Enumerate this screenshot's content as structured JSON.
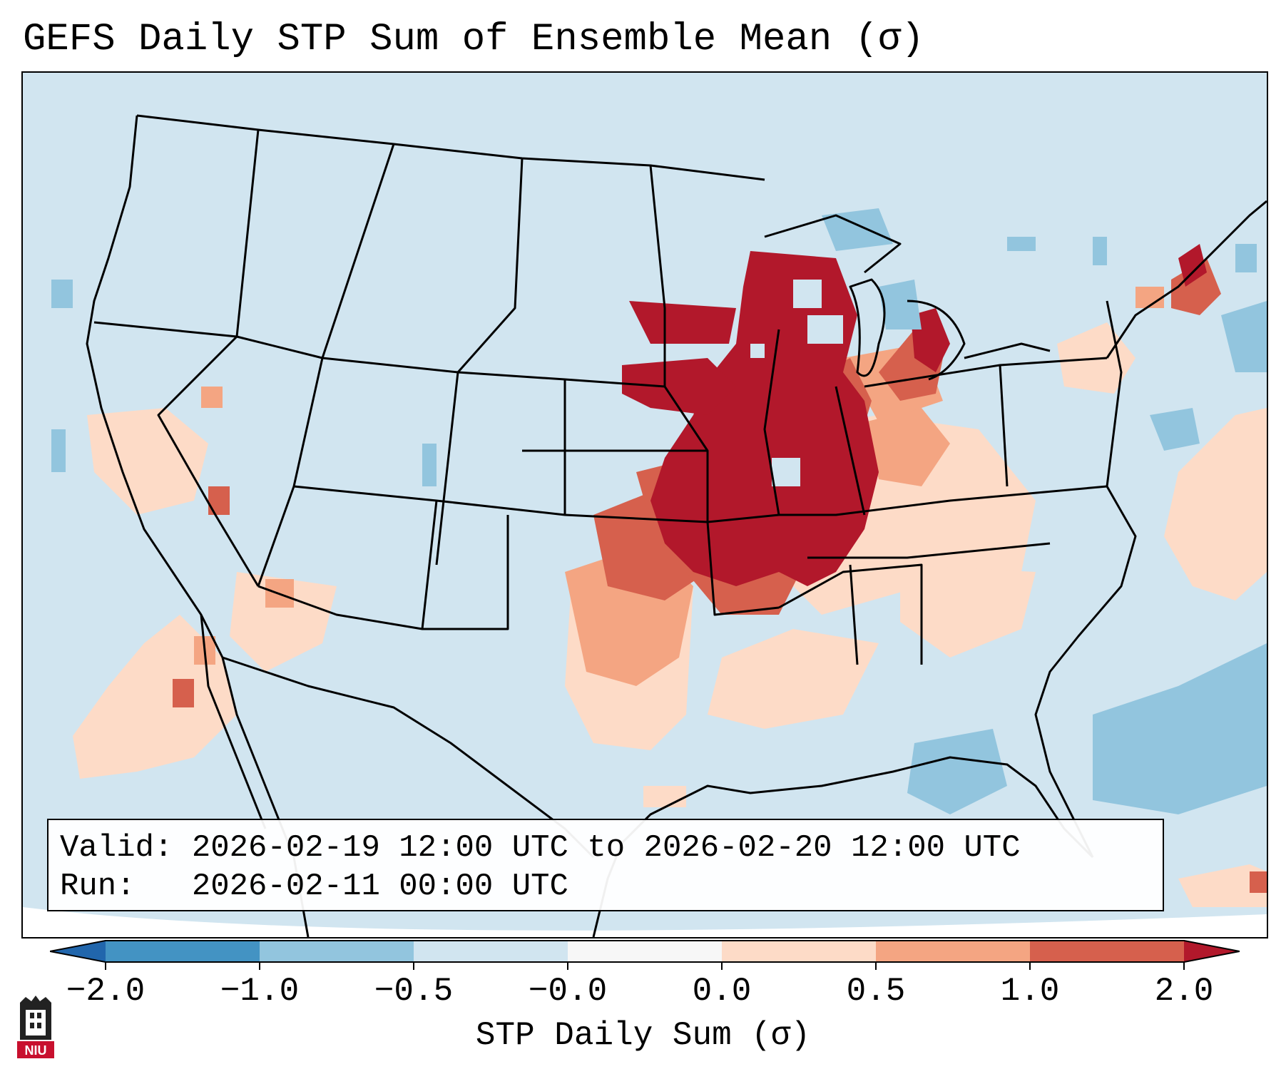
{
  "title": "GEFS Daily STP Sum of Ensemble Mean (σ)",
  "info": {
    "valid_line": "Valid: 2026-02-19 12:00 UTC to 2026-02-20 12:00 UTC",
    "run_line": "Run:   2026-02-11 00:00 UTC"
  },
  "colorbar": {
    "label": "STP Daily Sum (σ)",
    "ticks": [
      "−2.0",
      "−1.0",
      "−0.5",
      "−0.0",
      "0.0",
      "0.5",
      "1.0",
      "2.0"
    ],
    "colors": [
      "#2166ac",
      "#4393c3",
      "#92c5de",
      "#d1e5f0",
      "#f7f7f7",
      "#fddbc7",
      "#f4a582",
      "#d6604d",
      "#b2182b"
    ]
  },
  "map": {
    "projection": "Lambert conformal, CONUS",
    "background_color": "#d1e5f0",
    "field": "STP daily sum anomaly",
    "highlights": [
      {
        "region": "Iowa, Missouri, Illinois, Wisconsin",
        "level": "> 2.0",
        "color": "#b2182b"
      },
      {
        "region": "Eastern Kansas, Oklahoma, Arkansas, Michigan",
        "level": "1.0 to 2.0",
        "color": "#d6604d"
      },
      {
        "region": "Texas, Ohio Valley, Southeast",
        "level": "0.0 to 1.0",
        "color": "#fddbc7"
      },
      {
        "region": "Atlantic Ocean",
        "level": "-0.5 to -1.0",
        "color": "#92c5de"
      }
    ]
  },
  "logo": {
    "text": "NIU",
    "color": "#c8102e"
  }
}
